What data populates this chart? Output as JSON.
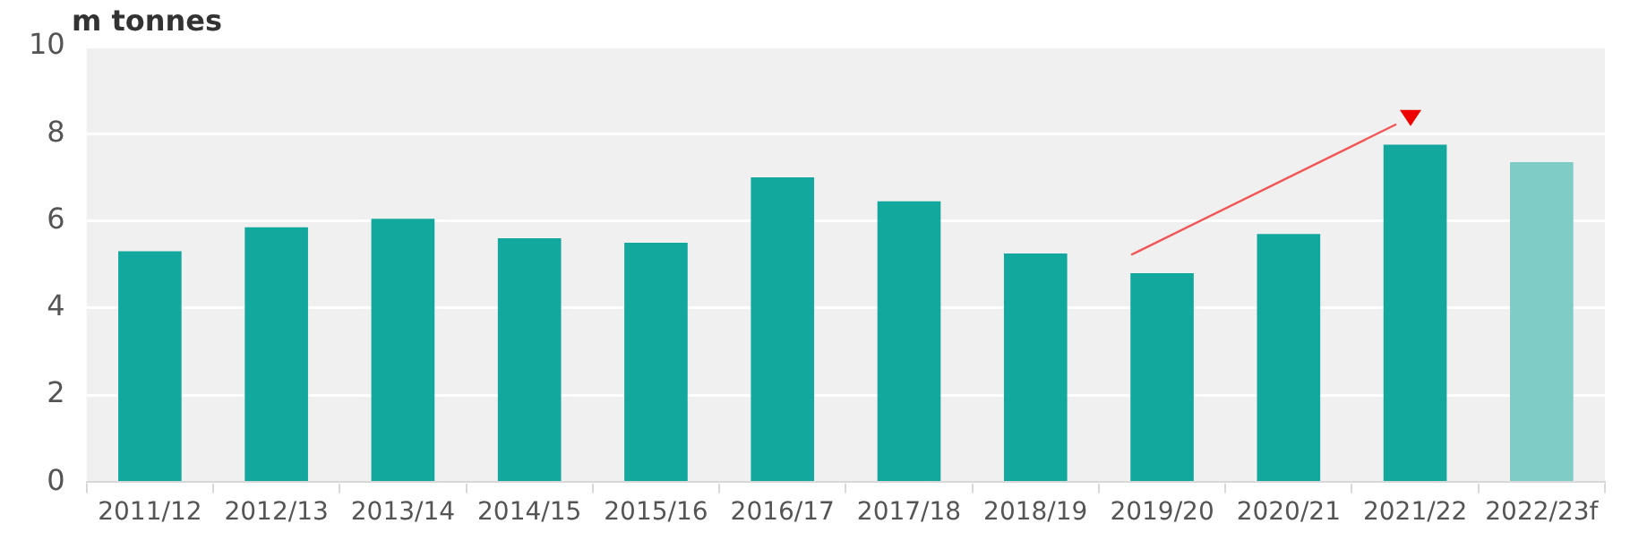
{
  "chart_data": {
    "type": "bar",
    "ylabel": "m tonnes",
    "categories": [
      "2011/12",
      "2012/13",
      "2013/14",
      "2014/15",
      "2015/16",
      "2016/17",
      "2017/18",
      "2018/19",
      "2019/20",
      "2020/21",
      "2021/22",
      "2022/23f"
    ],
    "values": [
      5.3,
      5.85,
      6.05,
      5.6,
      5.5,
      7.0,
      6.45,
      5.25,
      4.8,
      5.7,
      7.75,
      7.35
    ],
    "colors": [
      "#13a89e",
      "#13a89e",
      "#13a89e",
      "#13a89e",
      "#13a89e",
      "#13a89e",
      "#13a89e",
      "#13a89e",
      "#13a89e",
      "#13a89e",
      "#13a89e",
      "#7fccc6"
    ],
    "ylim": [
      0,
      10
    ],
    "yticks": [
      0,
      2,
      4,
      6,
      8,
      10
    ],
    "grid": "y",
    "legend": false
  }
}
